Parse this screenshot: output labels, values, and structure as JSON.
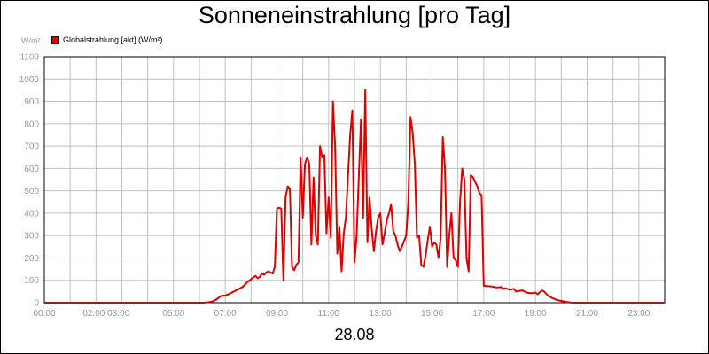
{
  "chart_data": {
    "type": "line",
    "title": "Sonneneinstrahlung [pro Tag]",
    "ylabel": "W/m²",
    "xlabel": "28.08",
    "ylim": [
      0,
      1100
    ],
    "xlim": [
      "00:00",
      "24:00"
    ],
    "grid": true,
    "legend_position": "top-left",
    "y_ticks": [
      0,
      100,
      200,
      300,
      400,
      500,
      600,
      700,
      800,
      900,
      1000,
      1100
    ],
    "x_tick_labels": [
      {
        "at": "00:00",
        "label": "00:00"
      },
      {
        "at": "02:00",
        "label": "02:00 03:00"
      },
      {
        "at": "05:00",
        "label": "05:00"
      },
      {
        "at": "07:00",
        "label": "07:00"
      },
      {
        "at": "09:00",
        "label": "09:00"
      },
      {
        "at": "11:00",
        "label": "11:00"
      },
      {
        "at": "13:00",
        "label": "13:00"
      },
      {
        "at": "15:00",
        "label": "15:00"
      },
      {
        "at": "17:00",
        "label": "17:00"
      },
      {
        "at": "19:00",
        "label": "19:00"
      },
      {
        "at": "21:00",
        "label": "21:00"
      },
      {
        "at": "23:00",
        "label": "23:00"
      }
    ],
    "x_grid": [
      "01:00",
      "02:00",
      "03:00",
      "04:00",
      "05:00",
      "06:00",
      "07:00",
      "08:00",
      "09:00",
      "10:00",
      "11:00",
      "12:00",
      "13:00",
      "14:00",
      "15:00",
      "16:00",
      "17:00",
      "18:00",
      "19:00",
      "20:00",
      "21:00",
      "22:00",
      "23:00"
    ],
    "series": [
      {
        "name": "Globalstrahlung [akt] (W/m²)",
        "color": "#e00000",
        "points": [
          [
            "00:00",
            0
          ],
          [
            "06:10",
            0
          ],
          [
            "06:20",
            2
          ],
          [
            "06:30",
            5
          ],
          [
            "06:40",
            15
          ],
          [
            "06:50",
            30
          ],
          [
            "07:00",
            32
          ],
          [
            "07:10",
            40
          ],
          [
            "07:20",
            50
          ],
          [
            "07:30",
            60
          ],
          [
            "07:40",
            70
          ],
          [
            "07:50",
            90
          ],
          [
            "08:00",
            105
          ],
          [
            "08:10",
            120
          ],
          [
            "08:15",
            110
          ],
          [
            "08:20",
            115
          ],
          [
            "08:25",
            130
          ],
          [
            "08:30",
            125
          ],
          [
            "08:35",
            135
          ],
          [
            "08:40",
            140
          ],
          [
            "08:45",
            135
          ],
          [
            "08:50",
            130
          ],
          [
            "08:55",
            160
          ],
          [
            "09:00",
            420
          ],
          [
            "09:05",
            425
          ],
          [
            "09:10",
            420
          ],
          [
            "09:15",
            100
          ],
          [
            "09:20",
            470
          ],
          [
            "09:25",
            520
          ],
          [
            "09:30",
            510
          ],
          [
            "09:35",
            160
          ],
          [
            "09:40",
            145
          ],
          [
            "09:45",
            170
          ],
          [
            "09:50",
            180
          ],
          [
            "09:55",
            650
          ],
          [
            "10:00",
            380
          ],
          [
            "10:05",
            620
          ],
          [
            "10:10",
            650
          ],
          [
            "10:15",
            620
          ],
          [
            "10:20",
            260
          ],
          [
            "10:25",
            560
          ],
          [
            "10:30",
            300
          ],
          [
            "10:35",
            260
          ],
          [
            "10:40",
            700
          ],
          [
            "10:45",
            650
          ],
          [
            "10:50",
            660
          ],
          [
            "10:55",
            310
          ],
          [
            "11:00",
            470
          ],
          [
            "11:05",
            290
          ],
          [
            "11:10",
            900
          ],
          [
            "11:15",
            700
          ],
          [
            "11:20",
            220
          ],
          [
            "11:25",
            340
          ],
          [
            "11:30",
            140
          ],
          [
            "11:35",
            310
          ],
          [
            "11:40",
            380
          ],
          [
            "11:45",
            570
          ],
          [
            "11:50",
            750
          ],
          [
            "11:55",
            860
          ],
          [
            "12:00",
            180
          ],
          [
            "12:05",
            300
          ],
          [
            "12:10",
            560
          ],
          [
            "12:15",
            820
          ],
          [
            "12:20",
            380
          ],
          [
            "12:25",
            950
          ],
          [
            "12:30",
            270
          ],
          [
            "12:35",
            470
          ],
          [
            "12:40",
            330
          ],
          [
            "12:45",
            230
          ],
          [
            "12:50",
            320
          ],
          [
            "12:55",
            380
          ],
          [
            "13:00",
            400
          ],
          [
            "13:05",
            260
          ],
          [
            "13:10",
            310
          ],
          [
            "13:15",
            370
          ],
          [
            "13:20",
            400
          ],
          [
            "13:25",
            440
          ],
          [
            "13:30",
            320
          ],
          [
            "13:35",
            300
          ],
          [
            "13:40",
            260
          ],
          [
            "13:45",
            230
          ],
          [
            "13:50",
            250
          ],
          [
            "14:00",
            300
          ],
          [
            "14:05",
            450
          ],
          [
            "14:10",
            830
          ],
          [
            "14:15",
            760
          ],
          [
            "14:20",
            620
          ],
          [
            "14:25",
            290
          ],
          [
            "14:30",
            300
          ],
          [
            "14:35",
            170
          ],
          [
            "14:40",
            160
          ],
          [
            "14:45",
            210
          ],
          [
            "14:50",
            280
          ],
          [
            "14:55",
            340
          ],
          [
            "15:00",
            250
          ],
          [
            "15:05",
            270
          ],
          [
            "15:10",
            260
          ],
          [
            "15:15",
            200
          ],
          [
            "15:20",
            290
          ],
          [
            "15:25",
            740
          ],
          [
            "15:30",
            600
          ],
          [
            "15:35",
            160
          ],
          [
            "15:40",
            300
          ],
          [
            "15:45",
            400
          ],
          [
            "15:50",
            200
          ],
          [
            "15:55",
            190
          ],
          [
            "16:00",
            160
          ],
          [
            "16:05",
            450
          ],
          [
            "16:10",
            600
          ],
          [
            "16:15",
            550
          ],
          [
            "16:20",
            200
          ],
          [
            "16:25",
            140
          ],
          [
            "16:30",
            570
          ],
          [
            "16:35",
            560
          ],
          [
            "16:45",
            520
          ],
          [
            "16:50",
            490
          ],
          [
            "16:55",
            480
          ],
          [
            "17:00",
            75
          ],
          [
            "17:20",
            72
          ],
          [
            "17:30",
            68
          ],
          [
            "17:40",
            70
          ],
          [
            "17:45",
            60
          ],
          [
            "17:50",
            65
          ],
          [
            "18:00",
            58
          ],
          [
            "18:10",
            62
          ],
          [
            "18:15",
            50
          ],
          [
            "18:30",
            55
          ],
          [
            "18:40",
            45
          ],
          [
            "18:50",
            42
          ],
          [
            "19:00",
            45
          ],
          [
            "19:05",
            38
          ],
          [
            "19:15",
            55
          ],
          [
            "19:20",
            50
          ],
          [
            "19:30",
            30
          ],
          [
            "19:40",
            20
          ],
          [
            "19:50",
            12
          ],
          [
            "20:00",
            8
          ],
          [
            "20:10",
            4
          ],
          [
            "20:20",
            1
          ],
          [
            "20:30",
            0
          ],
          [
            "24:00",
            0
          ]
        ]
      }
    ]
  }
}
